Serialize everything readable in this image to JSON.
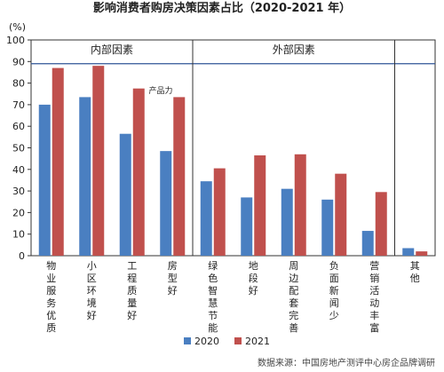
{
  "chart_data": {
    "type": "bar",
    "title": "影响消费者购房决策因素占比（2020-2021 年）",
    "ylabel": "(%)",
    "xlabel": "",
    "ylim": [
      0,
      100
    ],
    "yticks": [
      0,
      10,
      20,
      30,
      40,
      50,
      60,
      70,
      80,
      90,
      100
    ],
    "grid": false,
    "legend_position": "bottom",
    "categories": [
      "物业服务优质",
      "小区环境好",
      "工程质量好",
      "房型好",
      "绿色智慧节能",
      "地段好",
      "周边配套完善",
      "负面新闻少",
      "营销活动丰富",
      "其他"
    ],
    "series": [
      {
        "name": "2020",
        "color": "#4a7fc1",
        "values": [
          70,
          73.5,
          56.5,
          48.5,
          34.5,
          27,
          31,
          26,
          11.5,
          3.5
        ]
      },
      {
        "name": "2021",
        "color": "#c0504d",
        "values": [
          87,
          88,
          77.5,
          73.5,
          40.5,
          46.5,
          47,
          38,
          29.5,
          2
        ]
      }
    ],
    "groups": [
      {
        "label": "内部因素",
        "from": 0,
        "to": 3
      },
      {
        "label": "外部因素",
        "from": 4,
        "to": 8
      }
    ],
    "reference_line": 89,
    "annotations": [
      "产品力"
    ],
    "source": "数据来源：中国房地产测评中心房企品牌调研"
  }
}
